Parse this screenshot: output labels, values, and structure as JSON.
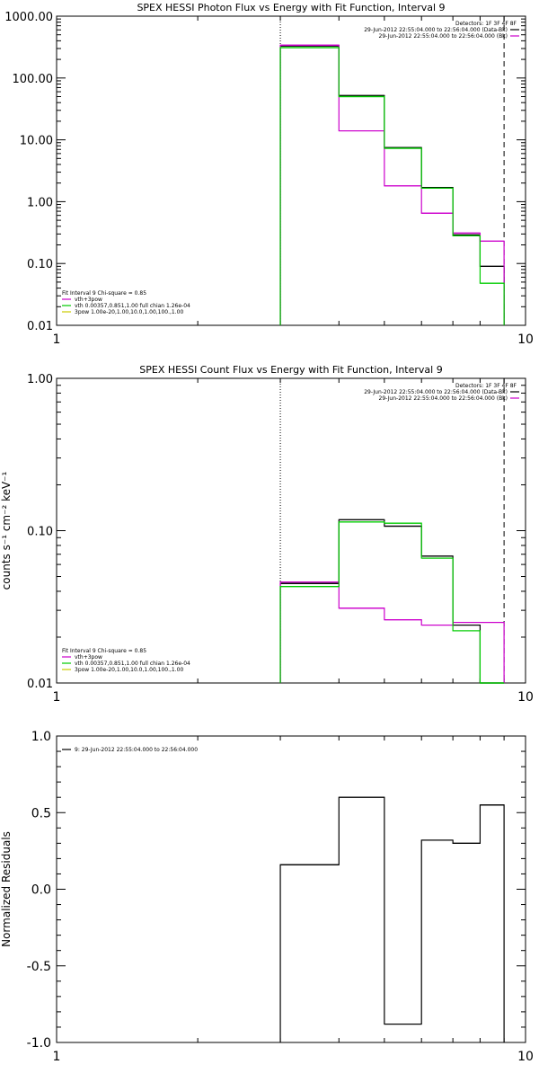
{
  "panels": [
    {
      "title": "SPEX HESSI Photon Flux vs Energy with Fit Function, Interval 9",
      "legend_right": [
        "Detectors: 1F 3F 4F 8F",
        "29-Jun-2012 22:55:04.000 to 22:56:04.000 (Data-Bk)",
        "29-Jun-2012 22:55:04.000 to 22:56:04.000 (Bk)"
      ],
      "legend_left": [
        "Fit Interval 9   Chi-square = 0.85",
        "vth+3pow",
        "vth 0.00357,0.851,1.00  full chian 1.26e-04",
        "3pow 1.00e-20,1.00,10.0,1.00,100.,1.00"
      ]
    },
    {
      "title": "SPEX HESSI Count Flux vs Energy with Fit Function, Interval 9",
      "ylabel": "counts s⁻¹ cm⁻² keV⁻¹",
      "legend_right": [
        "Detectors: 1F 3F 4F 8F",
        "29-Jun-2012 22:55:04.000 to 22:56:04.000 (Data-Bk)",
        "29-Jun-2012 22:55:04.000 to 22:56:04.000 (Bk)"
      ],
      "legend_left": [
        "Fit Interval 9   Chi-square = 0.85",
        "vth+3pow",
        "vth 0.00357,0.851,1.00  full chian 1.26e-04",
        "3pow 1.00e-20,1.00,10.0,1.00,100.,1.00"
      ]
    },
    {
      "title": "",
      "ylabel": "Normalized Residuals",
      "legend_right": [],
      "legend_left": [
        "9: 29-Jun-2012 22:55:04.000 to 22:56:04.000"
      ]
    }
  ],
  "chart_data": [
    {
      "type": "line",
      "title": "SPEX HESSI Photon Flux vs Energy with Fit Function, Interval 9",
      "xscale": "log",
      "yscale": "log",
      "xlim": [
        1,
        10
      ],
      "ylim": [
        0.01,
        1000
      ],
      "x_tick_labels": [
        "1",
        "10"
      ],
      "y_tick_labels": [
        "0.01",
        "0.10",
        "1.00",
        "10.00",
        "100.00",
        "1000.00"
      ],
      "vlines": [
        {
          "x": 3.0,
          "style": "dotted"
        },
        {
          "x": 9.0,
          "style": "dashed"
        }
      ],
      "bin_edges": [
        3.0,
        4.0,
        5.0,
        6.0,
        7.0,
        8.0,
        9.0
      ],
      "series": [
        {
          "color": "#000000",
          "values": [
            330,
            52,
            7.5,
            1.7,
            0.29,
            0.09
          ]
        },
        {
          "color": "#cc00cc",
          "values": [
            340,
            14,
            1.8,
            0.65,
            0.31,
            0.23
          ]
        },
        {
          "color": "#00cc00",
          "values": [
            310,
            50,
            7.3,
            1.65,
            0.28,
            0.048
          ]
        }
      ]
    },
    {
      "type": "line",
      "title": "SPEX HESSI Count Flux vs Energy with Fit Function, Interval 9",
      "ylabel": "counts s⁻¹ cm⁻² keV⁻¹",
      "xscale": "log",
      "yscale": "log",
      "xlim": [
        1,
        10
      ],
      "ylim": [
        0.01,
        1.0
      ],
      "x_tick_labels": [
        "1",
        "10"
      ],
      "y_tick_labels": [
        "0.01",
        "0.10",
        "1.00"
      ],
      "vlines": [
        {
          "x": 3.0,
          "style": "dotted"
        },
        {
          "x": 9.0,
          "style": "dashed"
        }
      ],
      "bin_edges": [
        3.0,
        4.0,
        5.0,
        6.0,
        7.0,
        8.0,
        9.0
      ],
      "series": [
        {
          "color": "#000000",
          "values": [
            0.045,
            0.118,
            0.107,
            0.068,
            0.024,
            0.01
          ]
        },
        {
          "color": "#cc00cc",
          "values": [
            0.046,
            0.031,
            0.026,
            0.024,
            0.025,
            0.025
          ]
        },
        {
          "color": "#00cc00",
          "values": [
            0.043,
            0.114,
            0.112,
            0.066,
            0.022,
            0.01
          ]
        }
      ]
    },
    {
      "type": "line",
      "ylabel": "Normalized Residuals",
      "xscale": "log",
      "yscale": "linear",
      "xlim": [
        1,
        10
      ],
      "ylim": [
        -1.0,
        1.0
      ],
      "x_tick_labels": [
        "1",
        "10"
      ],
      "y_tick_labels": [
        "-1.0",
        "-0.5",
        "0.0",
        "0.5",
        "1.0"
      ],
      "bin_edges": [
        3.0,
        4.0,
        5.0,
        6.0,
        7.0,
        8.0,
        9.0
      ],
      "series": [
        {
          "color": "#000000",
          "values": [
            0.16,
            0.6,
            -0.88,
            0.32,
            0.3,
            0.55
          ]
        }
      ]
    }
  ]
}
